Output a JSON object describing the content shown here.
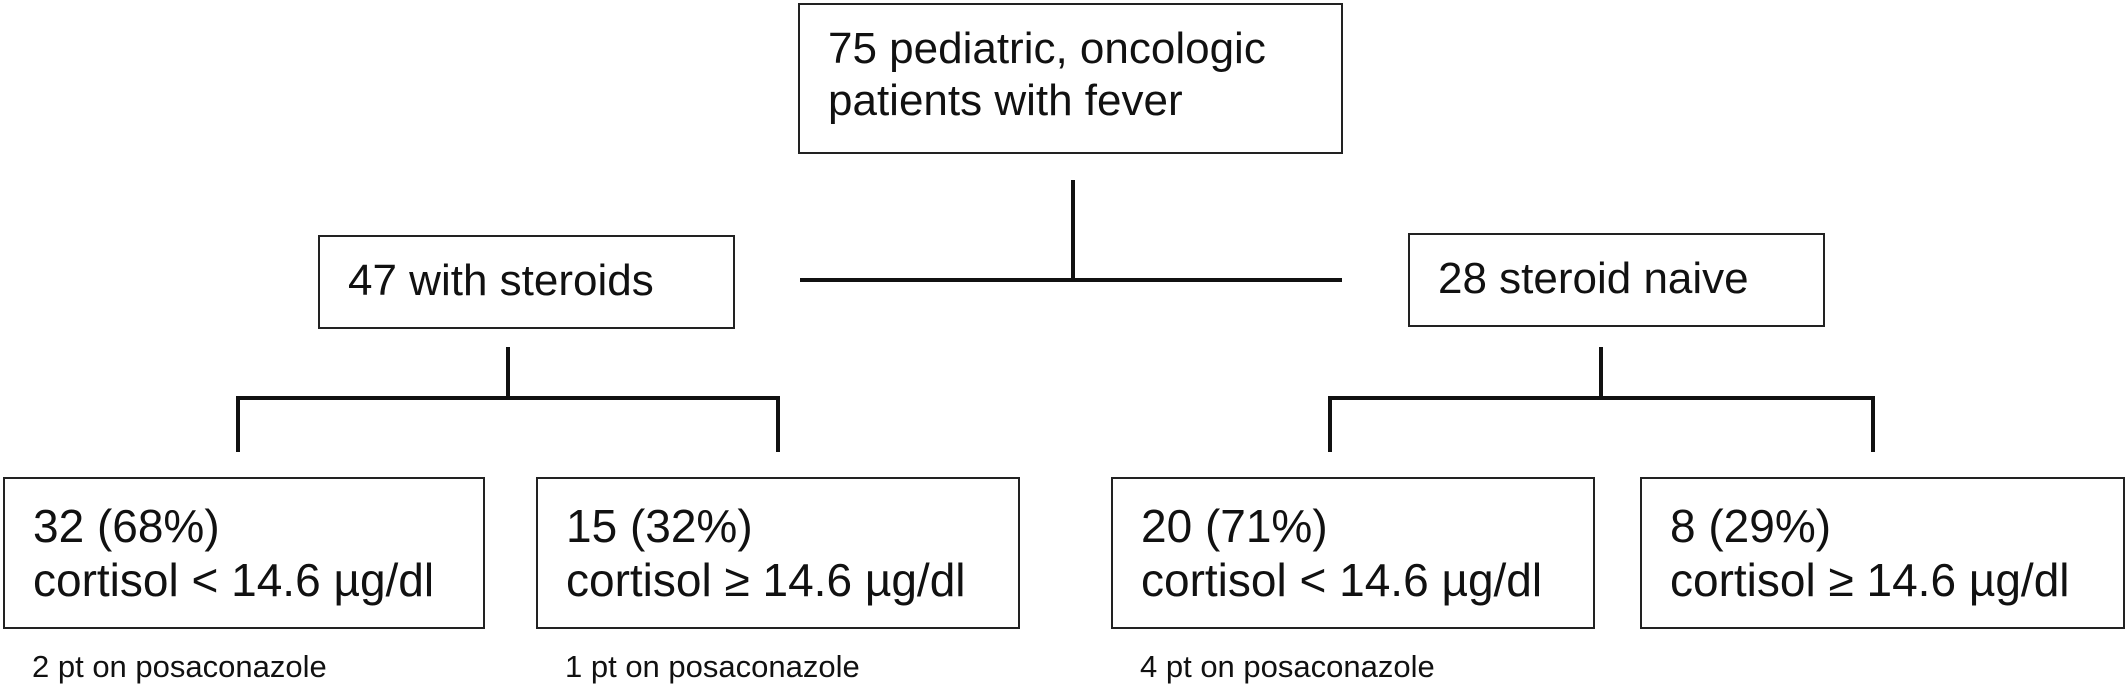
{
  "root": {
    "text": "75 pediatric, oncologic\npatients with fever"
  },
  "groups": [
    {
      "label": "47 with steroids",
      "children": [
        {
          "count": "32 (68%)",
          "criterion": "cortisol < 14.6 µg/dl",
          "note": "2 pt on posaconazole"
        },
        {
          "count": "15 (32%)",
          "criterion": "cortisol ≥ 14.6 µg/dl",
          "note": "1 pt on posaconazole"
        }
      ]
    },
    {
      "label": "28 steroid naive",
      "children": [
        {
          "count": "20 (71%)",
          "criterion": "cortisol < 14.6 µg/dl",
          "note": "4 pt on posaconazole"
        },
        {
          "count": "8 (29%)",
          "criterion": "cortisol ≥ 14.6 µg/dl",
          "note": ""
        }
      ]
    }
  ]
}
